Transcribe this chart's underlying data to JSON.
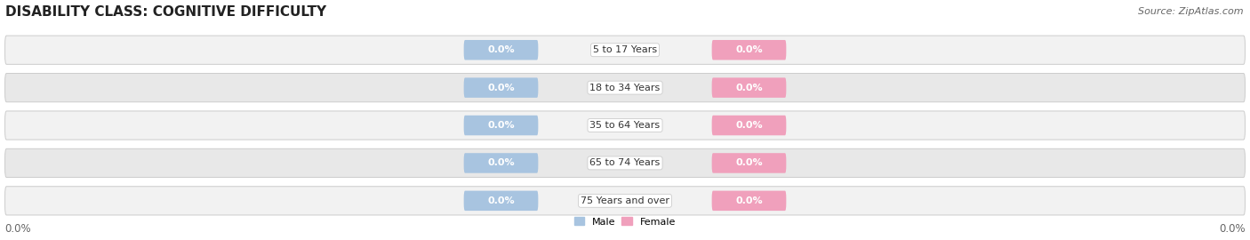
{
  "title": "DISABILITY CLASS: COGNITIVE DIFFICULTY",
  "source": "Source: ZipAtlas.com",
  "categories": [
    "5 to 17 Years",
    "18 to 34 Years",
    "35 to 64 Years",
    "65 to 74 Years",
    "75 Years and over"
  ],
  "male_values": [
    0.0,
    0.0,
    0.0,
    0.0,
    0.0
  ],
  "female_values": [
    0.0,
    0.0,
    0.0,
    0.0,
    0.0
  ],
  "male_color": "#a8c4e0",
  "female_color": "#f0a0bc",
  "row_colors": [
    "#f2f2f2",
    "#e8e8e8"
  ],
  "bar_stroke_color": "#cccccc",
  "title_fontsize": 11,
  "label_fontsize": 8.0,
  "tick_fontsize": 8.5,
  "source_fontsize": 8,
  "legend_male": "Male",
  "legend_female": "Female",
  "background_color": "#ffffff"
}
